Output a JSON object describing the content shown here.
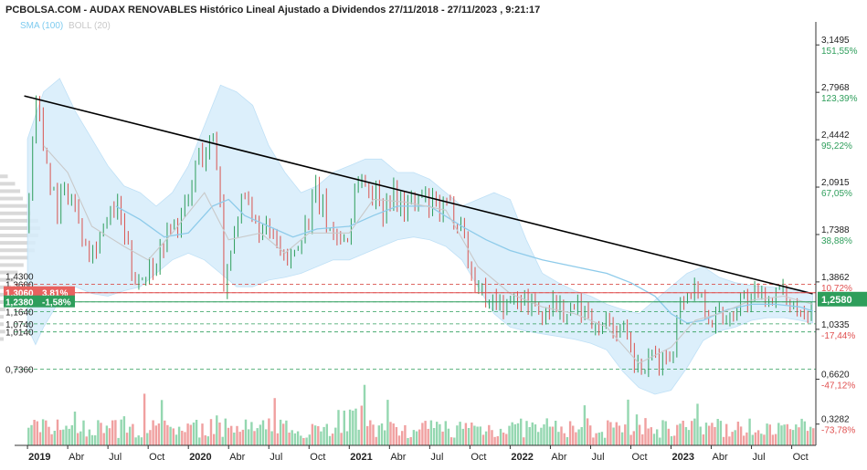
{
  "chart_data": {
    "type": "candlestick",
    "title": "PCBOLSA.COM - AUDAX RENOVABLES Histórico Lineal Ajustado a Dividendos 27/11/2018 - 27/11/2023 , 9:21:17",
    "legend": [
      {
        "name": "SMA (100)",
        "color": "#7ecbef"
      },
      {
        "name": "BOLL (20)",
        "color": "#c8c8c8"
      }
    ],
    "x_ticks": [
      {
        "label": "2019",
        "t": 0.0,
        "bold": true
      },
      {
        "label": "Abr",
        "t": 0.25
      },
      {
        "label": "Jul",
        "t": 0.5
      },
      {
        "label": "Oct",
        "t": 0.75
      },
      {
        "label": "2020",
        "t": 1.0,
        "bold": true
      },
      {
        "label": "Abr",
        "t": 1.25
      },
      {
        "label": "Jul",
        "t": 1.5
      },
      {
        "label": "Oct",
        "t": 1.75
      },
      {
        "label": "2021",
        "t": 2.0,
        "bold": true
      },
      {
        "label": "Abr",
        "t": 2.25
      },
      {
        "label": "Jul",
        "t": 2.5
      },
      {
        "label": "Oct",
        "t": 2.75
      },
      {
        "label": "2022",
        "t": 3.0,
        "bold": true
      },
      {
        "label": "Abr",
        "t": 3.25
      },
      {
        "label": "Jul",
        "t": 3.5
      },
      {
        "label": "Oct",
        "t": 3.75
      },
      {
        "label": "2023",
        "t": 4.0,
        "bold": true
      },
      {
        "label": "Abr",
        "t": 4.25
      },
      {
        "label": "Jul",
        "t": 4.5
      },
      {
        "label": "Oct",
        "t": 4.75
      }
    ],
    "x_range": [
      -0.08,
      4.9
    ],
    "y_range": [
      0.17,
      3.28
    ],
    "right_axis": [
      {
        "price": 3.1495,
        "label": "3,1495",
        "pct": "151,55%",
        "pct_color": "#2e9e5b"
      },
      {
        "price": 2.7968,
        "label": "2,7968",
        "pct": "123,39%",
        "pct_color": "#2e9e5b"
      },
      {
        "price": 2.4442,
        "label": "2,4442",
        "pct": "95,22%",
        "pct_color": "#2e9e5b"
      },
      {
        "price": 2.0915,
        "label": "2,0915",
        "pct": "67,05%",
        "pct_color": "#2e9e5b"
      },
      {
        "price": 1.7388,
        "label": "1,7388",
        "pct": "38,88%",
        "pct_color": "#2e9e5b"
      },
      {
        "price": 1.3862,
        "label": "1,3862",
        "pct": "10,72%",
        "pct_color": "#e05050"
      },
      {
        "price": 1.0335,
        "label": "1,0335",
        "pct": "-17,44%",
        "pct_color": "#e05050"
      },
      {
        "price": 0.662,
        "label": "0,6620",
        "pct": "-47,12%",
        "pct_color": "#e05050"
      },
      {
        "price": 0.3282,
        "label": "0,3282",
        "pct": "-73,78%",
        "pct_color": "#e05050"
      }
    ],
    "current_price": {
      "value": 1.258,
      "label": "1,2580"
    },
    "left_levels": [
      {
        "price": 1.43,
        "label": "1,4300"
      },
      {
        "price": 1.368,
        "label": "1,3680"
      },
      {
        "price": 1.164,
        "label": "1,1640"
      },
      {
        "price": 1.074,
        "label": "1,0740"
      },
      {
        "price": 1.014,
        "label": "1,0140"
      },
      {
        "price": 0.736,
        "label": "0,7360"
      }
    ],
    "left_tags": [
      {
        "price": 1.306,
        "label": "1,3060",
        "pct": "3,81%",
        "color": "#e8625f"
      },
      {
        "price": 1.238,
        "label": "1,2380",
        "pct": "-1,58%",
        "color": "#2e9e5b"
      }
    ],
    "dashed_levels": [
      1.368,
      1.306,
      1.238,
      1.164,
      1.074,
      1.014,
      0.736
    ],
    "resistance_line": [
      [
        -0.02,
        2.77
      ],
      [
        4.88,
        1.298
      ]
    ],
    "red_line": 1.306,
    "green_line": 1.238,
    "price_series": [
      [
        0.0,
        1.78
      ],
      [
        0.03,
        2.55
      ],
      [
        0.06,
        2.75
      ],
      [
        0.09,
        2.45
      ],
      [
        0.12,
        2.3
      ],
      [
        0.16,
        2.05
      ],
      [
        0.2,
        1.95
      ],
      [
        0.25,
        2.1
      ],
      [
        0.3,
        1.9
      ],
      [
        0.35,
        1.75
      ],
      [
        0.4,
        1.6
      ],
      [
        0.45,
        1.75
      ],
      [
        0.5,
        1.85
      ],
      [
        0.55,
        1.95
      ],
      [
        0.6,
        1.75
      ],
      [
        0.65,
        1.45
      ],
      [
        0.7,
        1.42
      ],
      [
        0.75,
        1.48
      ],
      [
        0.8,
        1.55
      ],
      [
        0.85,
        1.7
      ],
      [
        0.9,
        1.8
      ],
      [
        0.95,
        1.85
      ],
      [
        1.0,
        1.95
      ],
      [
        1.05,
        2.3
      ],
      [
        1.1,
        2.35
      ],
      [
        1.15,
        2.45
      ],
      [
        1.2,
        2.05
      ],
      [
        1.22,
        1.3
      ],
      [
        1.25,
        1.6
      ],
      [
        1.3,
        1.85
      ],
      [
        1.35,
        1.95
      ],
      [
        1.4,
        1.85
      ],
      [
        1.45,
        1.75
      ],
      [
        1.5,
        1.75
      ],
      [
        1.55,
        1.65
      ],
      [
        1.6,
        1.5
      ],
      [
        1.65,
        1.6
      ],
      [
        1.7,
        1.75
      ],
      [
        1.75,
        1.85
      ],
      [
        1.8,
        2.05
      ],
      [
        1.85,
        1.85
      ],
      [
        1.9,
        1.75
      ],
      [
        1.95,
        1.7
      ],
      [
        2.0,
        1.75
      ],
      [
        2.05,
        2.2
      ],
      [
        2.1,
        2.1
      ],
      [
        2.15,
        2.05
      ],
      [
        2.2,
        1.95
      ],
      [
        2.25,
        2.05
      ],
      [
        2.3,
        2.0
      ],
      [
        2.35,
        1.95
      ],
      [
        2.4,
        1.95
      ],
      [
        2.45,
        2.0
      ],
      [
        2.5,
        1.95
      ],
      [
        2.55,
        1.9
      ],
      [
        2.6,
        1.92
      ],
      [
        2.65,
        1.9
      ],
      [
        2.7,
        1.85
      ],
      [
        2.75,
        1.45
      ],
      [
        2.8,
        1.35
      ],
      [
        2.85,
        1.28
      ],
      [
        2.9,
        1.25
      ],
      [
        2.95,
        1.22
      ],
      [
        3.0,
        1.2
      ],
      [
        3.05,
        1.28
      ],
      [
        3.1,
        1.25
      ],
      [
        3.15,
        1.22
      ],
      [
        3.2,
        1.1
      ],
      [
        3.25,
        1.25
      ],
      [
        3.3,
        1.2
      ],
      [
        3.35,
        1.15
      ],
      [
        3.4,
        1.18
      ],
      [
        3.45,
        1.2
      ],
      [
        3.5,
        1.1
      ],
      [
        3.55,
        1.08
      ],
      [
        3.6,
        1.1
      ],
      [
        3.65,
        1.05
      ],
      [
        3.7,
        1.0
      ],
      [
        3.75,
        0.85
      ],
      [
        3.8,
        0.72
      ],
      [
        3.85,
        0.75
      ],
      [
        3.9,
        0.82
      ],
      [
        3.95,
        0.8
      ],
      [
        4.0,
        0.85
      ],
      [
        4.03,
        1.05
      ],
      [
        4.06,
        1.25
      ],
      [
        4.1,
        1.3
      ],
      [
        4.15,
        1.35
      ],
      [
        4.2,
        1.25
      ],
      [
        4.25,
        1.1
      ],
      [
        4.3,
        1.15
      ],
      [
        4.35,
        1.1
      ],
      [
        4.4,
        1.2
      ],
      [
        4.45,
        1.28
      ],
      [
        4.5,
        1.25
      ],
      [
        4.55,
        1.28
      ],
      [
        4.6,
        1.27
      ],
      [
        4.65,
        1.3
      ],
      [
        4.7,
        1.28
      ],
      [
        4.75,
        1.25
      ],
      [
        4.8,
        1.18
      ],
      [
        4.85,
        1.2
      ],
      [
        4.88,
        1.258
      ]
    ],
    "sma100": [
      [
        0.55,
        1.95
      ],
      [
        0.7,
        1.85
      ],
      [
        0.85,
        1.72
      ],
      [
        1.0,
        1.75
      ],
      [
        1.15,
        1.95
      ],
      [
        1.25,
        2.0
      ],
      [
        1.35,
        1.88
      ],
      [
        1.5,
        1.8
      ],
      [
        1.65,
        1.72
      ],
      [
        1.8,
        1.78
      ],
      [
        2.0,
        1.8
      ],
      [
        2.15,
        1.88
      ],
      [
        2.3,
        1.95
      ],
      [
        2.5,
        1.95
      ],
      [
        2.7,
        1.8
      ],
      [
        2.85,
        1.7
      ],
      [
        3.0,
        1.62
      ],
      [
        3.2,
        1.55
      ],
      [
        3.4,
        1.5
      ],
      [
        3.6,
        1.45
      ],
      [
        3.75,
        1.38
      ],
      [
        3.9,
        1.28
      ],
      [
        4.0,
        1.15
      ],
      [
        4.1,
        1.08
      ],
      [
        4.2,
        1.1
      ],
      [
        4.35,
        1.18
      ],
      [
        4.5,
        1.22
      ],
      [
        4.65,
        1.22
      ],
      [
        4.8,
        1.2
      ],
      [
        4.88,
        1.17
      ]
    ],
    "boll_mid": [
      [
        0.1,
        2.4
      ],
      [
        0.25,
        2.2
      ],
      [
        0.4,
        1.8
      ],
      [
        0.6,
        1.65
      ],
      [
        0.75,
        1.55
      ],
      [
        0.9,
        1.75
      ],
      [
        1.1,
        2.05
      ],
      [
        1.25,
        1.7
      ],
      [
        1.45,
        1.75
      ],
      [
        1.6,
        1.6
      ],
      [
        1.75,
        1.75
      ],
      [
        2.0,
        1.75
      ],
      [
        2.15,
        2.0
      ],
      [
        2.35,
        1.98
      ],
      [
        2.6,
        1.92
      ],
      [
        2.8,
        1.5
      ],
      [
        3.0,
        1.3
      ],
      [
        3.2,
        1.2
      ],
      [
        3.4,
        1.15
      ],
      [
        3.6,
        1.05
      ],
      [
        3.8,
        0.78
      ],
      [
        4.0,
        0.9
      ],
      [
        4.15,
        1.1
      ],
      [
        4.3,
        1.15
      ],
      [
        4.5,
        1.25
      ],
      [
        4.7,
        1.28
      ],
      [
        4.88,
        1.22
      ]
    ],
    "boll_upper": [
      [
        0.0,
        2.45
      ],
      [
        0.1,
        2.8
      ],
      [
        0.2,
        2.9
      ],
      [
        0.3,
        2.65
      ],
      [
        0.4,
        2.45
      ],
      [
        0.5,
        2.25
      ],
      [
        0.6,
        2.1
      ],
      [
        0.7,
        2.05
      ],
      [
        0.8,
        1.95
      ],
      [
        0.9,
        2.05
      ],
      [
        1.0,
        2.25
      ],
      [
        1.1,
        2.55
      ],
      [
        1.2,
        2.85
      ],
      [
        1.3,
        2.8
      ],
      [
        1.4,
        2.7
      ],
      [
        1.5,
        2.4
      ],
      [
        1.6,
        2.2
      ],
      [
        1.7,
        2.05
      ],
      [
        1.8,
        2.1
      ],
      [
        1.9,
        2.2
      ],
      [
        2.0,
        2.25
      ],
      [
        2.1,
        2.3
      ],
      [
        2.2,
        2.3
      ],
      [
        2.3,
        2.2
      ],
      [
        2.4,
        2.2
      ],
      [
        2.5,
        2.15
      ],
      [
        2.6,
        2.05
      ],
      [
        2.7,
        1.95
      ],
      [
        2.8,
        2.0
      ],
      [
        2.9,
        2.05
      ],
      [
        3.0,
        2.0
      ],
      [
        3.1,
        1.7
      ],
      [
        3.2,
        1.45
      ],
      [
        3.3,
        1.38
      ],
      [
        3.4,
        1.32
      ],
      [
        3.5,
        1.28
      ],
      [
        3.6,
        1.22
      ],
      [
        3.7,
        1.18
      ],
      [
        3.8,
        1.15
      ],
      [
        3.9,
        1.25
      ],
      [
        4.0,
        1.35
      ],
      [
        4.1,
        1.45
      ],
      [
        4.2,
        1.5
      ],
      [
        4.3,
        1.42
      ],
      [
        4.4,
        1.38
      ],
      [
        4.5,
        1.36
      ],
      [
        4.6,
        1.35
      ],
      [
        4.7,
        1.34
      ],
      [
        4.8,
        1.33
      ],
      [
        4.88,
        1.3
      ]
    ],
    "boll_lower": [
      [
        0.0,
        1.05
      ],
      [
        0.05,
        0.92
      ],
      [
        0.1,
        1.05
      ],
      [
        0.2,
        1.25
      ],
      [
        0.3,
        1.35
      ],
      [
        0.4,
        1.3
      ],
      [
        0.5,
        1.28
      ],
      [
        0.6,
        1.32
      ],
      [
        0.7,
        1.35
      ],
      [
        0.8,
        1.45
      ],
      [
        0.9,
        1.55
      ],
      [
        1.0,
        1.6
      ],
      [
        1.1,
        1.55
      ],
      [
        1.2,
        1.45
      ],
      [
        1.3,
        1.35
      ],
      [
        1.4,
        1.35
      ],
      [
        1.5,
        1.4
      ],
      [
        1.6,
        1.42
      ],
      [
        1.7,
        1.45
      ],
      [
        1.8,
        1.5
      ],
      [
        1.9,
        1.55
      ],
      [
        2.0,
        1.55
      ],
      [
        2.1,
        1.6
      ],
      [
        2.2,
        1.65
      ],
      [
        2.3,
        1.7
      ],
      [
        2.4,
        1.72
      ],
      [
        2.5,
        1.7
      ],
      [
        2.6,
        1.65
      ],
      [
        2.7,
        1.55
      ],
      [
        2.8,
        1.35
      ],
      [
        2.9,
        1.15
      ],
      [
        3.0,
        1.05
      ],
      [
        3.1,
        1.02
      ],
      [
        3.2,
        1.0
      ],
      [
        3.3,
        0.98
      ],
      [
        3.4,
        0.96
      ],
      [
        3.5,
        0.93
      ],
      [
        3.6,
        0.88
      ],
      [
        3.7,
        0.72
      ],
      [
        3.8,
        0.6
      ],
      [
        3.9,
        0.55
      ],
      [
        4.0,
        0.58
      ],
      [
        4.1,
        0.75
      ],
      [
        4.2,
        0.95
      ],
      [
        4.3,
        1.02
      ],
      [
        4.4,
        1.05
      ],
      [
        4.5,
        1.1
      ],
      [
        4.6,
        1.12
      ],
      [
        4.7,
        1.12
      ],
      [
        4.8,
        1.1
      ],
      [
        4.88,
        1.08
      ]
    ]
  }
}
